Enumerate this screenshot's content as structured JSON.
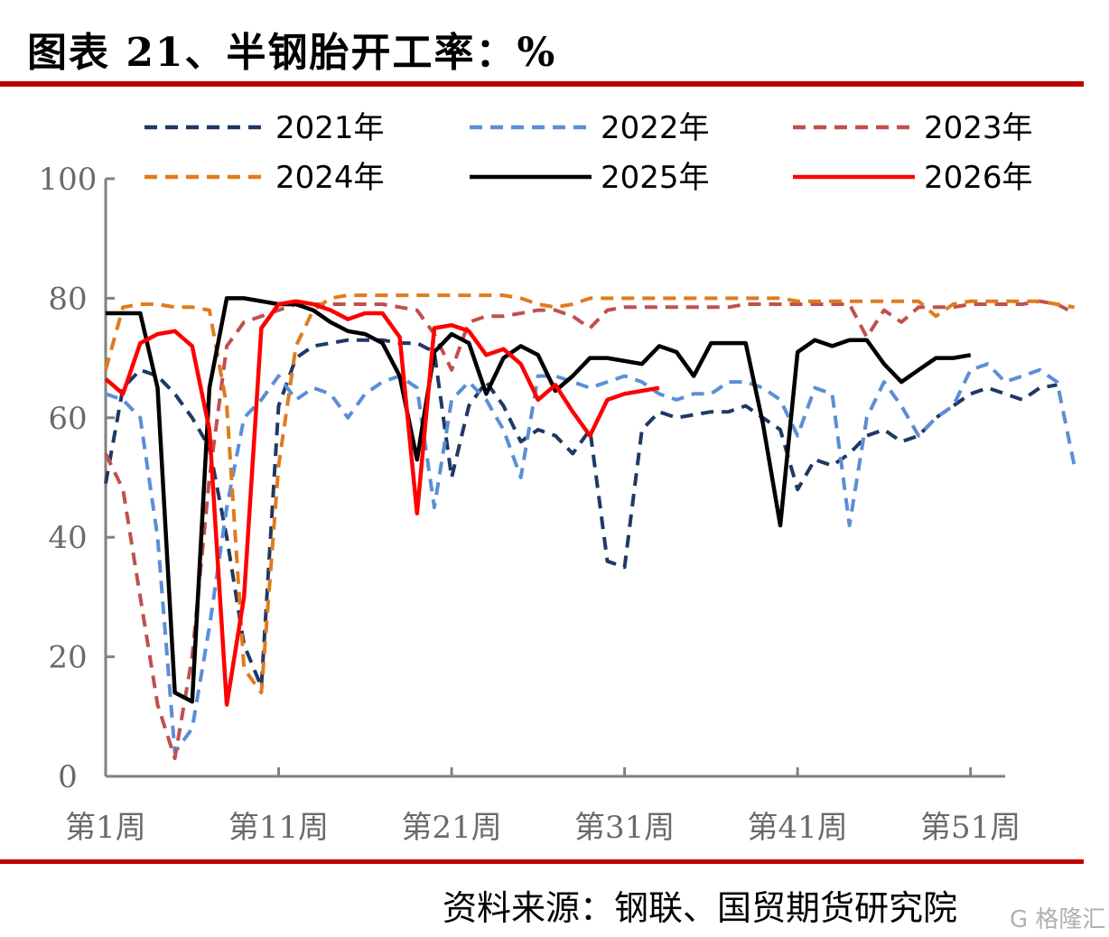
{
  "title": "图表 21、半钢胎开工率：%",
  "source": "资料来源：钢联、国贸期货研究院",
  "watermark": "G 格隆汇",
  "chart_data": {
    "type": "line",
    "ylim": [
      0,
      100
    ],
    "yticks": [
      0,
      20,
      40,
      60,
      80,
      100
    ],
    "xlim": [
      1,
      53
    ],
    "xticks": [
      {
        "week": 1,
        "label": "第1周"
      },
      {
        "week": 11,
        "label": "第11周"
      },
      {
        "week": 21,
        "label": "第21周"
      },
      {
        "week": 31,
        "label": "第31周"
      },
      {
        "week": 41,
        "label": "第41周"
      },
      {
        "week": 51,
        "label": "第51周"
      }
    ],
    "grid": false,
    "legend": "top",
    "series": [
      {
        "name": "2021年",
        "color": "#1f3864",
        "dash": true,
        "values": [
          49,
          65,
          68,
          67,
          64,
          60,
          55,
          40,
          22,
          15,
          62,
          70,
          72,
          72.5,
          73,
          73,
          73,
          72.5,
          72.5,
          71,
          50,
          62,
          66,
          62,
          56,
          58,
          57,
          54,
          58,
          36,
          35,
          58,
          61,
          60,
          60.5,
          61,
          61,
          62,
          60,
          58,
          48,
          53,
          52,
          54,
          57,
          58,
          56,
          57,
          60,
          62,
          64,
          65,
          64,
          63,
          65,
          65.5
        ]
      },
      {
        "week_start": 1,
        "name": "2022年",
        "color": "#5b8ed6",
        "dash": true,
        "values": [
          64,
          63,
          60,
          40,
          4,
          8,
          25,
          45,
          60,
          63,
          67,
          63,
          65,
          64,
          60,
          64,
          66,
          67,
          65,
          45,
          63,
          66,
          63,
          58,
          50,
          67,
          67,
          66,
          65,
          66,
          67,
          66,
          64,
          63,
          64,
          64,
          66,
          66,
          65,
          63,
          57,
          65,
          64,
          42,
          60,
          66,
          62,
          57,
          60,
          62,
          68,
          69,
          66,
          67,
          68,
          66,
          52
        ]
      },
      {
        "name": "2023年",
        "color": "#c0504d",
        "dash": true,
        "values": [
          54,
          48,
          30,
          12,
          3,
          20,
          50,
          72,
          76,
          77,
          78,
          79,
          79,
          79,
          79,
          79,
          79,
          78.5,
          78,
          74,
          68,
          76,
          77,
          77,
          77.5,
          78,
          78,
          77,
          75,
          78,
          78.5,
          78.5,
          78.5,
          78.5,
          78.5,
          78.5,
          78.5,
          79,
          79,
          79,
          79,
          79,
          79,
          79,
          73.5,
          78,
          76,
          78.5,
          78.5,
          78.5,
          79,
          79,
          79,
          79,
          79.5,
          79,
          77.5
        ]
      },
      {
        "name": "2024年",
        "color": "#e07b1c",
        "dash": true,
        "values": [
          68,
          78.5,
          79,
          79,
          78.5,
          78.5,
          78,
          62,
          18,
          14,
          52,
          72,
          78,
          80,
          80.5,
          80.5,
          80.5,
          80.5,
          80.5,
          80.5,
          80.5,
          80.5,
          80.5,
          80.5,
          80,
          79,
          78.5,
          79,
          80,
          80,
          80,
          80,
          80,
          80,
          80,
          80,
          80,
          80,
          80,
          80,
          79.5,
          79.5,
          79.5,
          79.5,
          79.5,
          79.5,
          79.5,
          79.5,
          77,
          79,
          79.5,
          79.5,
          79.5,
          79.5,
          79.5,
          79,
          78.5
        ]
      },
      {
        "name": "2025年",
        "color": "#000000",
        "dash": false,
        "values": [
          77.5,
          77.5,
          77.5,
          65,
          14,
          12.5,
          65,
          80,
          80,
          79.5,
          79,
          79,
          78,
          76,
          74.5,
          74,
          72.5,
          67,
          53,
          71,
          74,
          72.5,
          64,
          70,
          72,
          70.5,
          64.5,
          67,
          70,
          70,
          69.5,
          69,
          72,
          71,
          67,
          72.5,
          72.5,
          72.5,
          59,
          42,
          71,
          73,
          72,
          73,
          73,
          69,
          66,
          68,
          70,
          70,
          70.5
        ]
      },
      {
        "name": "2026年",
        "color": "#ff0000",
        "dash": false,
        "values": [
          66.5,
          64,
          72.5,
          74,
          74.5,
          72,
          58,
          12,
          30,
          75,
          79,
          79.5,
          79,
          78,
          76.5,
          77.5,
          77.5,
          73.5,
          44,
          75,
          75.5,
          74.5,
          70.5,
          71.5,
          69,
          63,
          65.5,
          61,
          57,
          63,
          64,
          64.5,
          65
        ]
      }
    ]
  }
}
